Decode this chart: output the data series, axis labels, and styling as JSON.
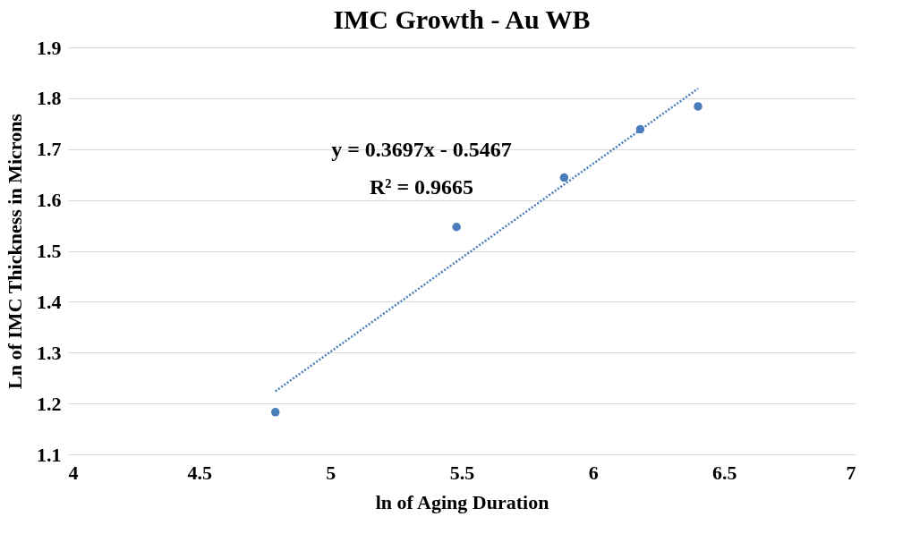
{
  "chart_data": {
    "type": "scatter",
    "title": "IMC Growth - Au WB",
    "xlabel": "ln of Aging Duration",
    "ylabel": "Ln of IMC Thickness  in Microns",
    "series": [
      {
        "color": "#4a7ebb",
        "x": [
          4.79,
          5.48,
          5.89,
          6.18,
          6.4
        ],
        "values": [
          1.183,
          1.547,
          1.644,
          1.739,
          1.784
        ],
        "marker": "circle"
      },
      {
        "type": "line",
        "color": "#4a7ebb",
        "x": [
          4.79,
          6.4
        ],
        "values": [
          1.224,
          1.819
        ],
        "line_style": "dotted"
      }
    ],
    "annotations": [
      "y = 0.3697x - 0.5467",
      "R² = 0.9665"
    ],
    "xlim": [
      4,
      7
    ],
    "xticks": [
      4,
      4.5,
      5,
      5.5,
      6,
      6.5,
      7
    ],
    "ylim": [
      1.1,
      1.9
    ],
    "yticks": [
      1.1,
      1.2,
      1.3,
      1.4,
      1.5,
      1.6,
      1.7,
      1.8,
      1.9
    ],
    "grid": "y"
  }
}
